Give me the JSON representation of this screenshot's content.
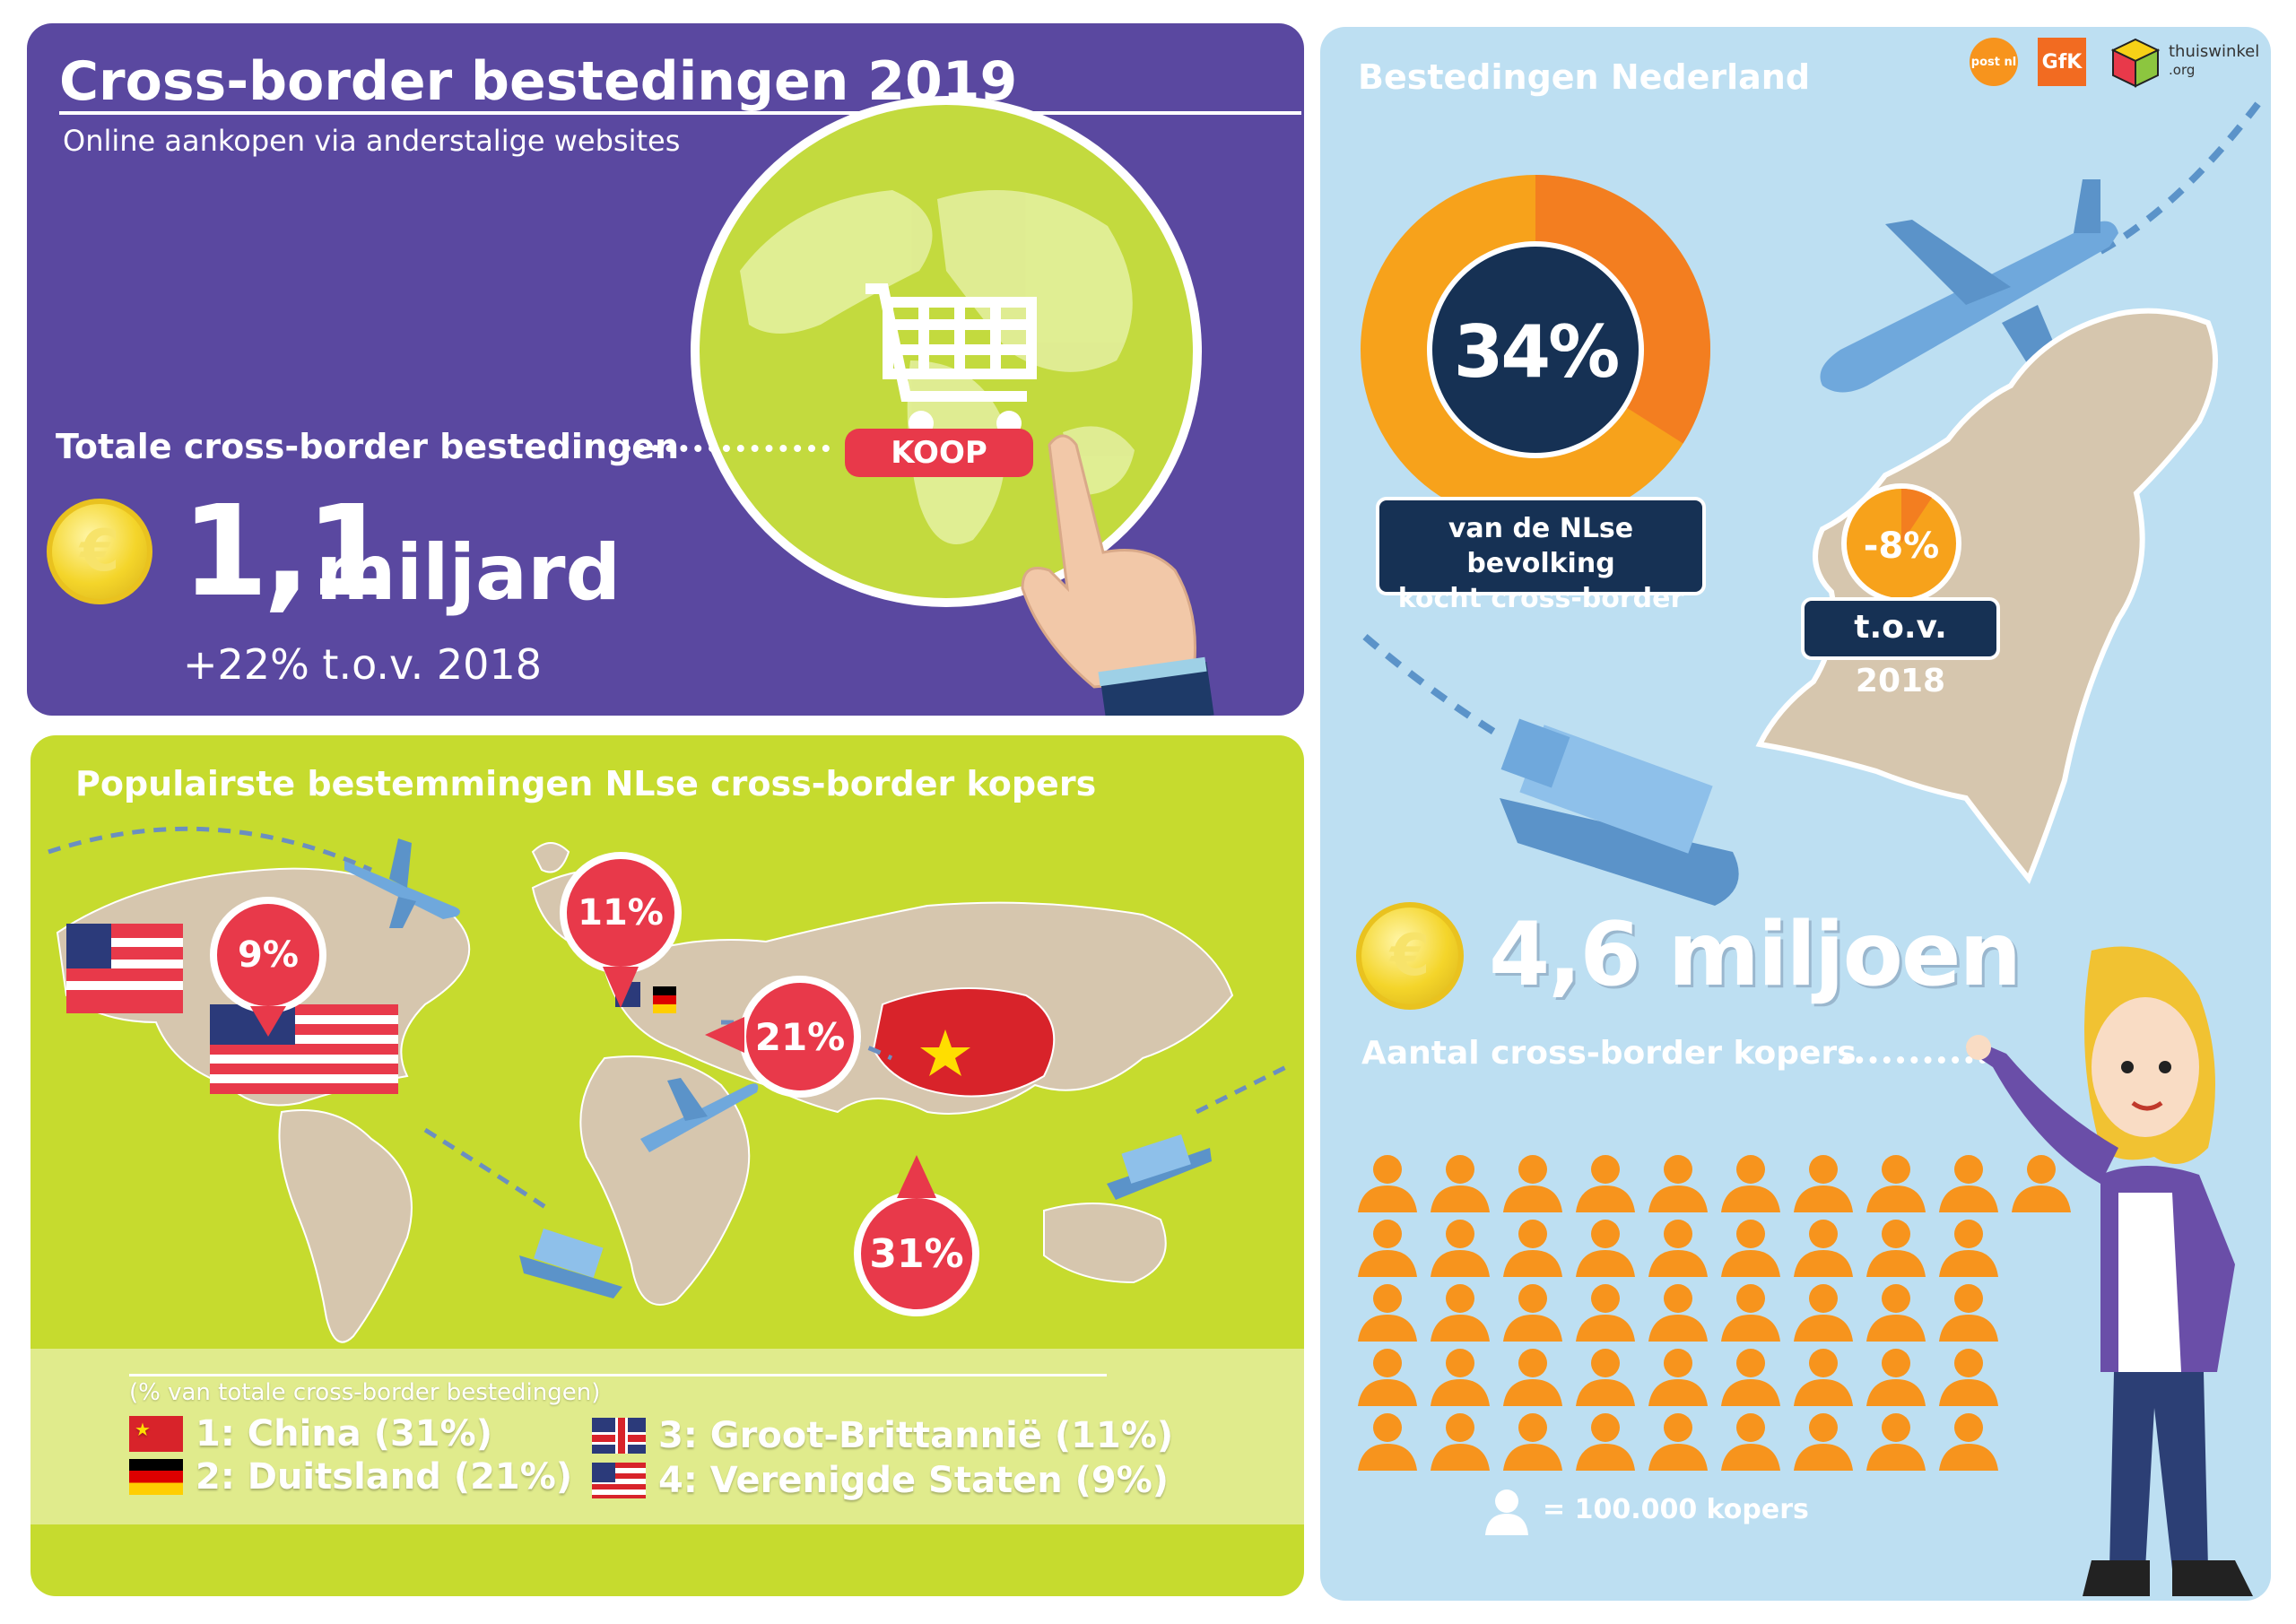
{
  "left_top": {
    "title": "Cross-border bestedingen 2019",
    "subtitle": "Online aankopen via anderstalige websites",
    "koop_label": "KOOP",
    "total_label": "Totale cross-border bestedingen",
    "amount_value": "1,1",
    "amount_unit": "miljard",
    "growth": "+22% t.o.v. 2018"
  },
  "left_bottom": {
    "title": "Populairste bestemmingen NLse cross-border kopers",
    "pins": [
      {
        "label": "9%",
        "country": "Verenigde Staten"
      },
      {
        "label": "11%",
        "country": "Groot-Brittannië"
      },
      {
        "label": "21%",
        "country": "Duitsland"
      },
      {
        "label": "31%",
        "country": "China"
      }
    ],
    "legend_note": "(% van totale cross-border bestedingen)",
    "legend": [
      {
        "text": "1: China (31%)",
        "flag": "china-flag"
      },
      {
        "text": "2: Duitsland (21%)",
        "flag": "germany-flag"
      },
      {
        "text": "3: Groot-Brittannië (11%)",
        "flag": "uk-flag"
      },
      {
        "text": "4: Verenigde Staten (9%)",
        "flag": "usa-flag"
      }
    ]
  },
  "right": {
    "title": "Bestedingen Nederland",
    "logos": [
      "postnl",
      "GfK",
      "thuiswinkel.org"
    ],
    "logo_texts": {
      "postnl": "post nl",
      "gfk": "GfK",
      "thuiswinkel": "thuiswinkel",
      "thuiswinkel_sub": ".org"
    },
    "donut_value": "34%",
    "donut_fraction": 0.34,
    "donut_caption_line1": "van de NLse bevolking",
    "donut_caption_line2": "kocht cross-border",
    "change_value": "-8%",
    "change_label": "t.o.v. 2018",
    "buyers_value": "4,6 miljoen",
    "buyers_label": "Aantal cross-border kopers",
    "icon_legend": "= 100.000 kopers",
    "icon_count": 46
  },
  "colors": {
    "purple": "#5a48a0",
    "lime": "#c6db2e",
    "lightblue": "#bddff2",
    "orange": "#f7941d",
    "red": "#e8394a",
    "navy": "#163154"
  }
}
